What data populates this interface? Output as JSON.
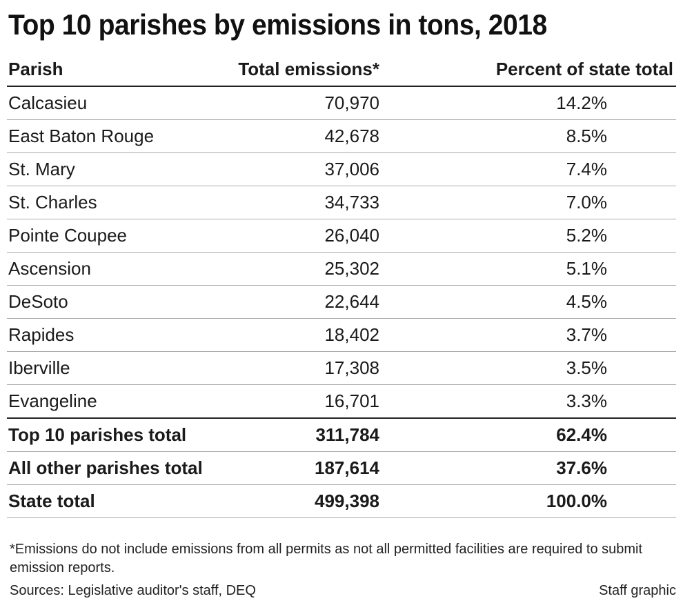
{
  "title": "Top 10 parishes by emissions in tons, 2018",
  "chart_data": {
    "type": "table",
    "columns": [
      "Parish",
      "Total emissions*",
      "Percent of state total"
    ],
    "rows": [
      [
        "Calcasieu",
        "70,970",
        "14.2%"
      ],
      [
        "East Baton Rouge",
        "42,678",
        "8.5%"
      ],
      [
        "St. Mary",
        "37,006",
        "7.4%"
      ],
      [
        "St. Charles",
        "34,733",
        "7.0%"
      ],
      [
        "Pointe Coupee",
        "26,040",
        "5.2%"
      ],
      [
        "Ascension",
        "25,302",
        "5.1%"
      ],
      [
        "DeSoto",
        "22,644",
        "4.5%"
      ],
      [
        "Rapides",
        "18,402",
        "3.7%"
      ],
      [
        "Iberville",
        "17,308",
        "3.5%"
      ],
      [
        "Evangeline",
        "16,701",
        "3.3%"
      ]
    ],
    "totals": [
      [
        "Top 10 parishes total",
        "311,784",
        "62.4%"
      ],
      [
        "All other parishes total",
        "187,614",
        "37.6%"
      ],
      [
        "State total",
        "499,398",
        "100.0%"
      ]
    ]
  },
  "footnote": "*Emissions do not include emissions from all permits as not all permitted facilities are required to submit emission reports.",
  "sources": "Sources: Legislative auditor's staff, DEQ",
  "credit": "Staff graphic"
}
